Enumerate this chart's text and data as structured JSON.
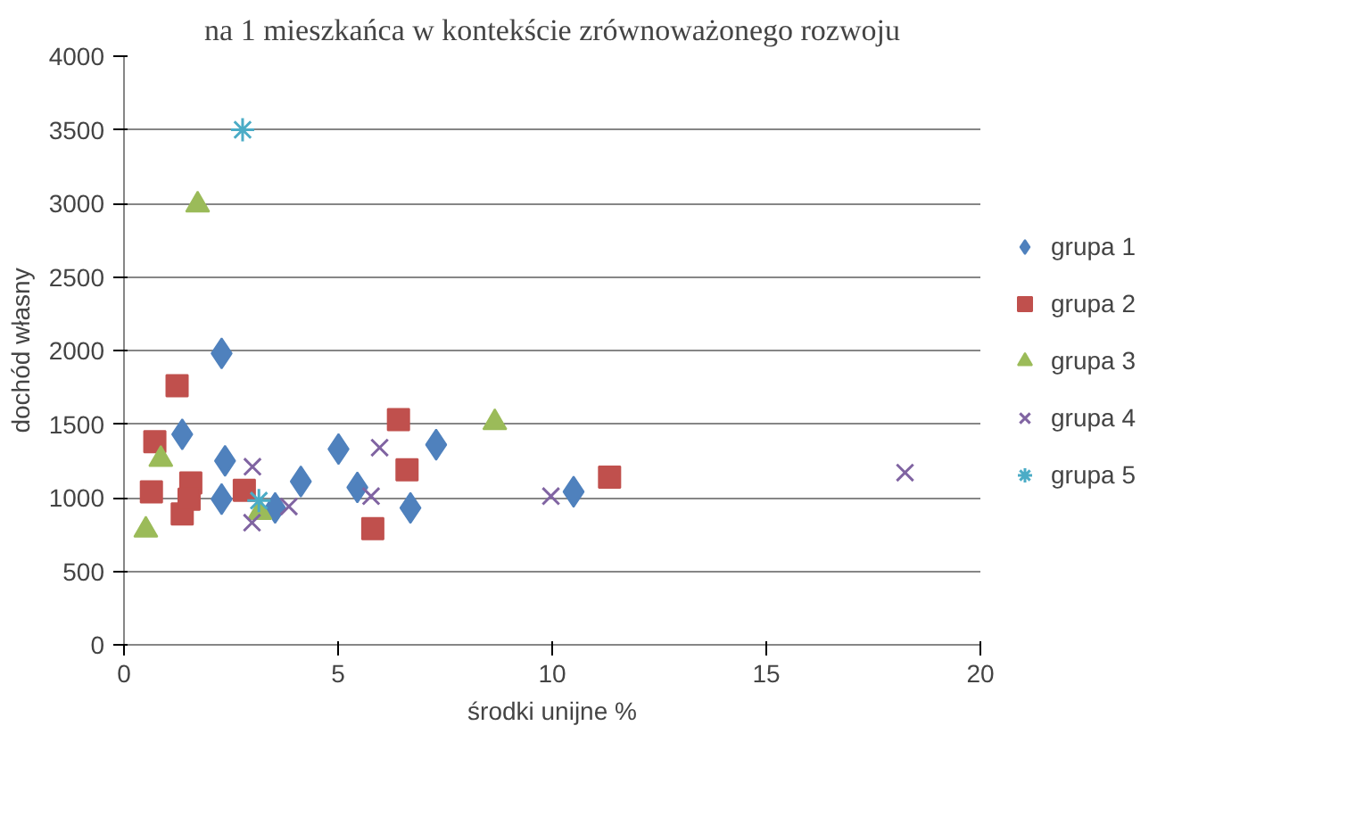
{
  "chart_data": {
    "type": "scatter",
    "title": "na 1 mieszkańca w kontekście zrównoważonego rozwoju",
    "xlabel": "środki unijne %",
    "ylabel": "dochód własny",
    "series": [
      {
        "name": "grupa 1",
        "color": "#4f81bd",
        "marker": "diamond",
        "x": [
          2.28,
          1.36,
          2.36,
          2.28,
          3.53,
          4.13,
          5.01,
          5.45,
          6.69,
          7.29,
          10.5
        ],
        "values": [
          1980,
          1430,
          1250,
          990,
          930,
          1110,
          1330,
          1070,
          930,
          1360,
          1040
        ]
      },
      {
        "name": "grupa 2",
        "color": "#c0504d",
        "marker": "square",
        "x": [
          1.24,
          0.72,
          0.64,
          1.56,
          1.36,
          1.52,
          2.81,
          6.41,
          6.61,
          5.81,
          11.34
        ],
        "values": [
          1760,
          1380,
          1040,
          1100,
          890,
          990,
          1050,
          1530,
          1190,
          790,
          1140
        ]
      },
      {
        "name": "grupa 3",
        "color": "#9bbb59",
        "marker": "triangle",
        "x": [
          1.72,
          0.86,
          0.51,
          3.17,
          8.66
        ],
        "values": [
          2990,
          1260,
          780,
          900,
          1510
        ]
      },
      {
        "name": "grupa 4",
        "color": "#8064a2",
        "marker": "x",
        "x": [
          3.0,
          2.99,
          3.85,
          5.97,
          5.77,
          9.97,
          18.24
        ],
        "values": [
          1210,
          830,
          940,
          1340,
          1010,
          1010,
          1170
        ]
      },
      {
        "name": "grupa 5",
        "color": "#4bacc6",
        "marker": "cross",
        "x": [
          2.77,
          3.15
        ],
        "values": [
          3500,
          980
        ]
      }
    ],
    "xlim": [
      0,
      20
    ],
    "xticks": [
      0,
      5,
      10,
      15,
      20
    ],
    "ylim": [
      0,
      4000
    ],
    "yticks": [
      0,
      500,
      1000,
      1500,
      2000,
      2500,
      3000,
      3500,
      4000
    ],
    "grid": "y",
    "legend": "right"
  }
}
